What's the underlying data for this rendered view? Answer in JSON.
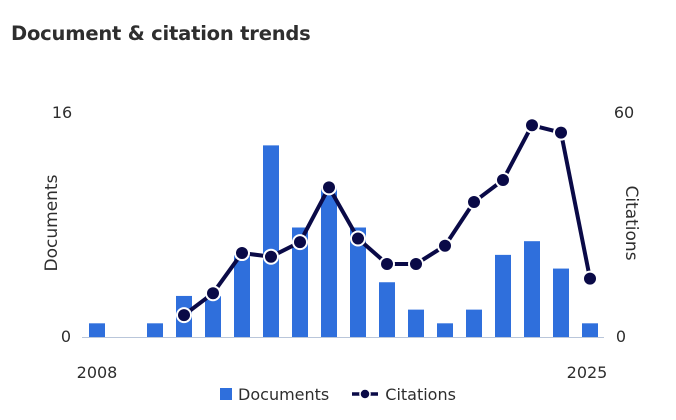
{
  "card": {
    "title": "Document & citation trends"
  },
  "colors": {
    "bar": "#2f6fdc",
    "line": "#0a0a47",
    "axis": "#b9c6da"
  },
  "chart_data": {
    "type": "bar+line",
    "title": "Document & citation trends",
    "x_axis": {
      "min": 2008,
      "max": 2025,
      "tick_labels": [
        "2008",
        "2025"
      ]
    },
    "y_left": {
      "label": "Documents",
      "min": 0,
      "max": 16,
      "tick_labels": [
        "0",
        "16"
      ]
    },
    "y_right": {
      "label": "Citations",
      "min": 0,
      "max": 60,
      "tick_labels": [
        "0",
        "60"
      ]
    },
    "years": [
      2008,
      2009,
      2010,
      2011,
      2012,
      2013,
      2014,
      2015,
      2016,
      2017,
      2018,
      2019,
      2020,
      2021,
      2022,
      2023,
      2024,
      2025
    ],
    "series": [
      {
        "name": "Documents",
        "type": "bar",
        "axis": "left",
        "values": [
          1,
          0,
          1,
          3,
          3,
          6,
          14,
          8,
          11,
          8,
          4,
          2,
          1,
          2,
          6,
          7,
          5,
          1
        ]
      },
      {
        "name": "Citations",
        "type": "line",
        "axis": "right",
        "values": [
          null,
          null,
          null,
          6,
          12,
          23,
          22,
          26,
          41,
          27,
          20,
          20,
          25,
          37,
          43,
          58,
          56,
          16
        ]
      }
    ],
    "grid": false,
    "legend_position": "bottom"
  }
}
